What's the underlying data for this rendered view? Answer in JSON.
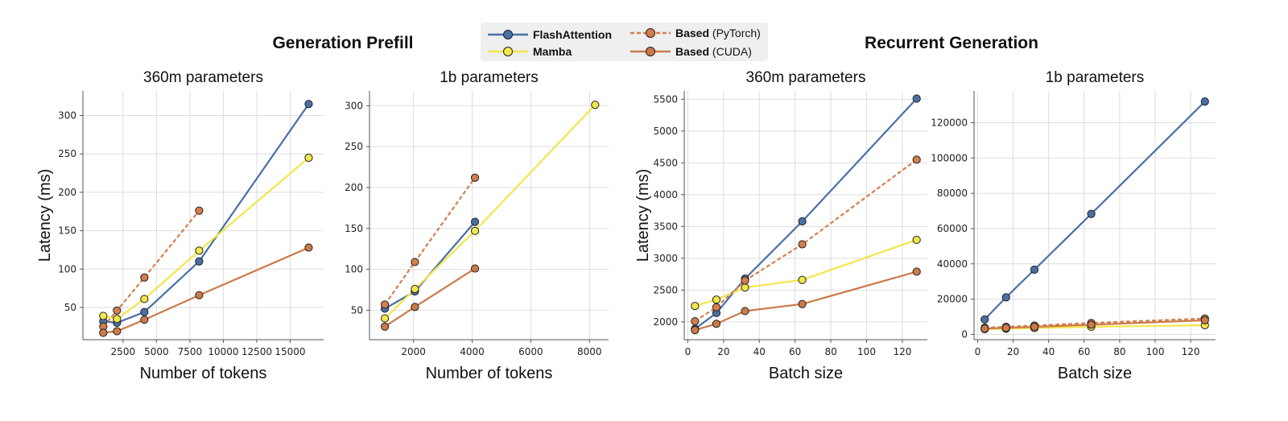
{
  "section_titles": {
    "left": "Generation Prefill",
    "right": "Recurrent Generation"
  },
  "legend": {
    "items": [
      {
        "name": "FlashAttention",
        "suffix": "",
        "color": "#4a6fa5",
        "dash": false
      },
      {
        "name": "Mamba",
        "suffix": "",
        "color": "#f2e64a",
        "dash": false
      },
      {
        "name": "Based",
        "suffix": " (PyTorch)",
        "color": "#d57e4e",
        "dash": true
      },
      {
        "name": "Based",
        "suffix": " (CUDA)",
        "color": "#cc7a4a",
        "dash": false
      }
    ]
  },
  "chart_data": [
    {
      "type": "line",
      "title": "360m parameters",
      "xlabel": "Number of tokens",
      "ylabel": "Latency (ms)",
      "xlim": [
        -500,
        17500
      ],
      "ylim": [
        8,
        332
      ],
      "xticks": [
        2500,
        5000,
        7500,
        10000,
        12500,
        15000
      ],
      "yticks": [
        50,
        100,
        150,
        200,
        250,
        300
      ],
      "grid": true,
      "series": [
        {
          "name": "FlashAttention",
          "color": "#4a6fa5",
          "dash": false,
          "x": [
            1024,
            2048,
            4096,
            8192,
            16384
          ],
          "y": [
            32,
            30,
            44,
            110,
            315
          ]
        },
        {
          "name": "Mamba",
          "color": "#f2e64a",
          "dash": false,
          "x": [
            1024,
            2048,
            4096,
            8192,
            16384
          ],
          "y": [
            39,
            35,
            61,
            124,
            245
          ]
        },
        {
          "name": "Based (PyTorch)",
          "color": "#d57e4e",
          "dash": true,
          "x": [
            1024,
            2048,
            4096,
            8192
          ],
          "y": [
            25,
            46,
            89,
            176
          ]
        },
        {
          "name": "Based (CUDA)",
          "color": "#cc7a4a",
          "dash": false,
          "x": [
            1024,
            2048,
            4096,
            8192,
            16384
          ],
          "y": [
            17,
            19,
            34,
            66,
            128
          ]
        }
      ]
    },
    {
      "type": "line",
      "title": "1b parameters",
      "xlabel": "Number of tokens",
      "ylabel": "",
      "xlim": [
        500,
        8650
      ],
      "ylim": [
        14,
        318
      ],
      "xticks": [
        2000,
        4000,
        6000,
        8000
      ],
      "yticks": [
        50,
        100,
        150,
        200,
        250,
        300
      ],
      "grid": true,
      "series": [
        {
          "name": "FlashAttention",
          "color": "#4a6fa5",
          "dash": false,
          "x": [
            1024,
            2048,
            4096
          ],
          "y": [
            52,
            73,
            158
          ]
        },
        {
          "name": "Mamba",
          "color": "#f2e64a",
          "dash": false,
          "x": [
            1024,
            2048,
            4096,
            8192
          ],
          "y": [
            40,
            76,
            147,
            301
          ]
        },
        {
          "name": "Based (PyTorch)",
          "color": "#d57e4e",
          "dash": true,
          "x": [
            1024,
            2048,
            4096
          ],
          "y": [
            57,
            109,
            212
          ]
        },
        {
          "name": "Based (CUDA)",
          "color": "#cc7a4a",
          "dash": false,
          "x": [
            1024,
            2048,
            4096
          ],
          "y": [
            30,
            54,
            101
          ]
        }
      ]
    },
    {
      "type": "line",
      "title": "360m parameters",
      "xlabel": "Batch size",
      "ylabel": "Latency (ms)",
      "xlim": [
        -2,
        134
      ],
      "ylim": [
        1720,
        5630
      ],
      "xticks": [
        0,
        20,
        40,
        60,
        80,
        100,
        120
      ],
      "yticks": [
        2000,
        2500,
        3000,
        3500,
        4000,
        4500,
        5000,
        5500
      ],
      "grid": true,
      "series": [
        {
          "name": "FlashAttention",
          "color": "#4a6fa5",
          "dash": false,
          "x": [
            4,
            16,
            32,
            64,
            128
          ],
          "y": [
            1890,
            2140,
            2680,
            3580,
            5510
          ]
        },
        {
          "name": "Mamba",
          "color": "#f2e64a",
          "dash": false,
          "x": [
            4,
            16,
            32,
            64,
            128
          ],
          "y": [
            2250,
            2350,
            2540,
            2660,
            3290
          ]
        },
        {
          "name": "Based (PyTorch)",
          "color": "#d57e4e",
          "dash": true,
          "x": [
            4,
            16,
            32,
            64,
            128
          ],
          "y": [
            2010,
            2230,
            2650,
            3220,
            4550
          ]
        },
        {
          "name": "Based (CUDA)",
          "color": "#cc7a4a",
          "dash": false,
          "x": [
            4,
            16,
            32,
            64,
            128
          ],
          "y": [
            1870,
            1970,
            2170,
            2280,
            2790
          ]
        }
      ]
    },
    {
      "type": "line",
      "title": "1b parameters",
      "xlabel": "Batch size",
      "ylabel": "",
      "xlim": [
        -2,
        134
      ],
      "ylim": [
        -3000,
        138000
      ],
      "xticks": [
        0,
        20,
        40,
        60,
        80,
        100,
        120
      ],
      "yticks": [
        0,
        20000,
        40000,
        60000,
        80000,
        100000,
        120000
      ],
      "grid": true,
      "series": [
        {
          "name": "FlashAttention",
          "color": "#4a6fa5",
          "dash": false,
          "x": [
            4,
            16,
            32,
            64,
            128
          ],
          "y": [
            8500,
            21000,
            36700,
            68300,
            132000
          ]
        },
        {
          "name": "Mamba",
          "color": "#f2e64a",
          "dash": false,
          "x": [
            4,
            16,
            32,
            64,
            128
          ],
          "y": [
            3000,
            3200,
            3600,
            4300,
            5200
          ]
        },
        {
          "name": "Based (PyTorch)",
          "color": "#d57e4e",
          "dash": true,
          "x": [
            4,
            16,
            32,
            64,
            128
          ],
          "y": [
            3800,
            4300,
            5000,
            6500,
            9000
          ]
        },
        {
          "name": "Based (CUDA)",
          "color": "#cc7a4a",
          "dash": false,
          "x": [
            4,
            16,
            32,
            64,
            128
          ],
          "y": [
            3300,
            3700,
            4300,
            5500,
            8000
          ]
        }
      ]
    }
  ]
}
